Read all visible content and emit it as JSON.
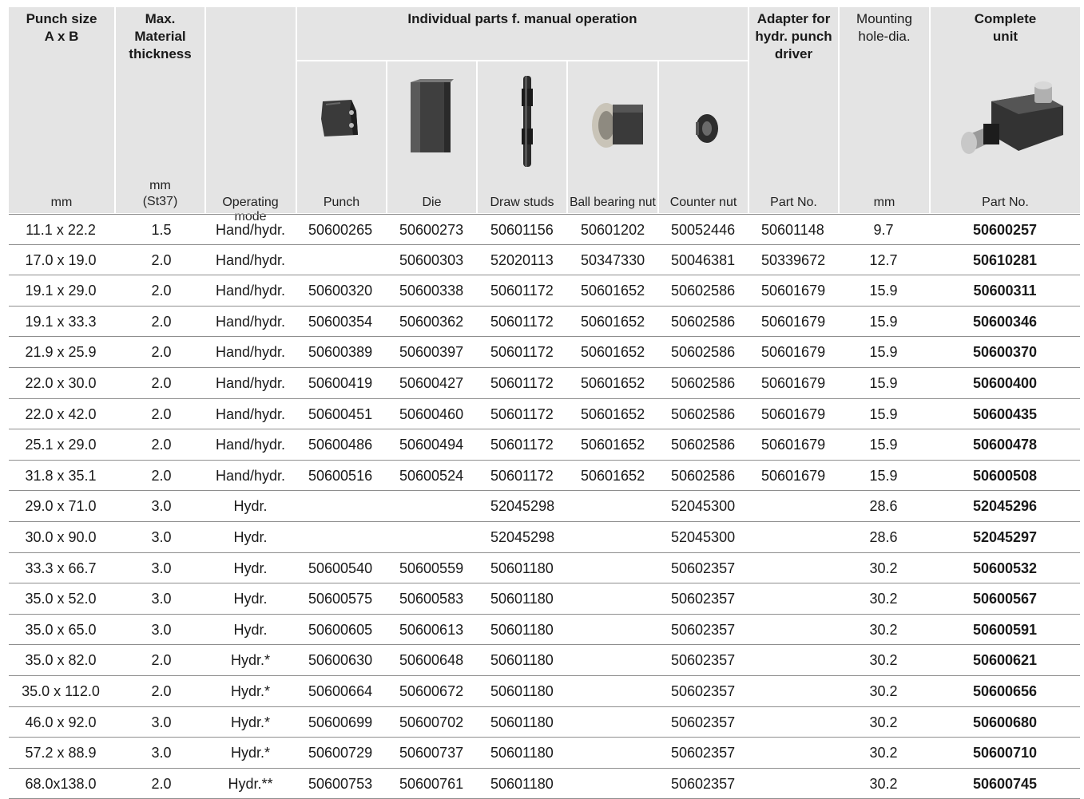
{
  "header": {
    "punch_size": "Punch size\nA x B",
    "max_thickness": "Max.\nMaterial\nthickness",
    "individual_parts": "Individual parts f. manual operation",
    "adapter": "Adapter for\nhydr. punch\ndriver",
    "mounting": "Mounting\nhole-dia.",
    "complete": "Complete\nunit"
  },
  "units": {
    "size": "mm",
    "thickness": "mm\n(St37)",
    "mode": "Operating mode",
    "punch": "Punch",
    "die": "Die",
    "draw": "Draw studs",
    "ball": "Ball bearing nut",
    "counter": "Counter nut",
    "adapter": "Part No.",
    "hole": "mm",
    "complete": "Part No."
  },
  "icons": [
    "punch-icon",
    "die-icon",
    "draw-stud-icon",
    "ball-bearing-nut-icon",
    "counter-nut-icon",
    "complete-unit-icon"
  ],
  "rows": [
    {
      "size": "11.1 x 22.2",
      "thick": "1.5",
      "mode": "Hand/hydr.",
      "punch": "50600265",
      "die": "50600273",
      "draw": "50601156",
      "ball": "50601202",
      "counter": "50052446",
      "adapter": "50601148",
      "hole": "9.7",
      "complete": "50600257"
    },
    {
      "size": "17.0 x 19.0",
      "thick": "2.0",
      "mode": "Hand/hydr.",
      "punch": "",
      "die": "50600303",
      "draw": "52020113",
      "ball": "50347330",
      "counter": "50046381",
      "adapter": "50339672",
      "hole": "12.7",
      "complete": "50610281"
    },
    {
      "size": "19.1 x 29.0",
      "thick": "2.0",
      "mode": "Hand/hydr.",
      "punch": "50600320",
      "die": "50600338",
      "draw": "50601172",
      "ball": "50601652",
      "counter": "50602586",
      "adapter": "50601679",
      "hole": "15.9",
      "complete": "50600311"
    },
    {
      "size": "19.1 x 33.3",
      "thick": "2.0",
      "mode": "Hand/hydr.",
      "punch": "50600354",
      "die": "50600362",
      "draw": "50601172",
      "ball": "50601652",
      "counter": "50602586",
      "adapter": "50601679",
      "hole": "15.9",
      "complete": "50600346"
    },
    {
      "size": "21.9 x 25.9",
      "thick": "2.0",
      "mode": "Hand/hydr.",
      "punch": "50600389",
      "die": "50600397",
      "draw": "50601172",
      "ball": "50601652",
      "counter": "50602586",
      "adapter": "50601679",
      "hole": "15.9",
      "complete": "50600370"
    },
    {
      "size": "22.0 x 30.0",
      "thick": "2.0",
      "mode": "Hand/hydr.",
      "punch": "50600419",
      "die": "50600427",
      "draw": "50601172",
      "ball": "50601652",
      "counter": "50602586",
      "adapter": "50601679",
      "hole": "15.9",
      "complete": "50600400"
    },
    {
      "size": "22.0 x 42.0",
      "thick": "2.0",
      "mode": "Hand/hydr.",
      "punch": "50600451",
      "die": "50600460",
      "draw": "50601172",
      "ball": "50601652",
      "counter": "50602586",
      "adapter": "50601679",
      "hole": "15.9",
      "complete": "50600435"
    },
    {
      "size": "25.1 x 29.0",
      "thick": "2.0",
      "mode": "Hand/hydr.",
      "punch": "50600486",
      "die": "50600494",
      "draw": "50601172",
      "ball": "50601652",
      "counter": "50602586",
      "adapter": "50601679",
      "hole": "15.9",
      "complete": "50600478"
    },
    {
      "size": "31.8 x 35.1",
      "thick": "2.0",
      "mode": "Hand/hydr.",
      "punch": "50600516",
      "die": "50600524",
      "draw": "50601172",
      "ball": "50601652",
      "counter": "50602586",
      "adapter": "50601679",
      "hole": "15.9",
      "complete": "50600508"
    },
    {
      "size": "29.0 x 71.0",
      "thick": "3.0",
      "mode": "Hydr.",
      "punch": "",
      "die": "",
      "draw": "52045298",
      "ball": "",
      "counter": "52045300",
      "adapter": "",
      "hole": "28.6",
      "complete": "52045296"
    },
    {
      "size": "30.0 x 90.0",
      "thick": "3.0",
      "mode": "Hydr.",
      "punch": "",
      "die": "",
      "draw": "52045298",
      "ball": "",
      "counter": "52045300",
      "adapter": "",
      "hole": "28.6",
      "complete": "52045297"
    },
    {
      "size": "33.3 x 66.7",
      "thick": "3.0",
      "mode": "Hydr.",
      "punch": "50600540",
      "die": "50600559",
      "draw": "50601180",
      "ball": "",
      "counter": "50602357",
      "adapter": "",
      "hole": "30.2",
      "complete": "50600532"
    },
    {
      "size": "35.0 x 52.0",
      "thick": "3.0",
      "mode": "Hydr.",
      "punch": "50600575",
      "die": "50600583",
      "draw": "50601180",
      "ball": "",
      "counter": "50602357",
      "adapter": "",
      "hole": "30.2",
      "complete": "50600567"
    },
    {
      "size": "35.0 x 65.0",
      "thick": "3.0",
      "mode": "Hydr.",
      "punch": "50600605",
      "die": "50600613",
      "draw": "50601180",
      "ball": "",
      "counter": "50602357",
      "adapter": "",
      "hole": "30.2",
      "complete": "50600591"
    },
    {
      "size": "35.0 x 82.0",
      "thick": "2.0",
      "mode": "Hydr.*",
      "punch": "50600630",
      "die": "50600648",
      "draw": "50601180",
      "ball": "",
      "counter": "50602357",
      "adapter": "",
      "hole": "30.2",
      "complete": "50600621"
    },
    {
      "size": "35.0 x 112.0",
      "thick": "2.0",
      "mode": "Hydr.*",
      "punch": "50600664",
      "die": "50600672",
      "draw": "50601180",
      "ball": "",
      "counter": "50602357",
      "adapter": "",
      "hole": "30.2",
      "complete": "50600656"
    },
    {
      "size": "46.0 x 92.0",
      "thick": "3.0",
      "mode": "Hydr.*",
      "punch": "50600699",
      "die": "50600702",
      "draw": "50601180",
      "ball": "",
      "counter": "50602357",
      "adapter": "",
      "hole": "30.2",
      "complete": "50600680"
    },
    {
      "size": "57.2 x 88.9",
      "thick": "3.0",
      "mode": "Hydr.*",
      "punch": "50600729",
      "die": "50600737",
      "draw": "50601180",
      "ball": "",
      "counter": "50602357",
      "adapter": "",
      "hole": "30.2",
      "complete": "50600710"
    },
    {
      "size": "68.0x138.0",
      "thick": "2.0",
      "mode": "Hydr.**",
      "punch": "50600753",
      "die": "50600761",
      "draw": "50601180",
      "ball": "",
      "counter": "50602357",
      "adapter": "",
      "hole": "30.2",
      "complete": "50600745"
    }
  ]
}
